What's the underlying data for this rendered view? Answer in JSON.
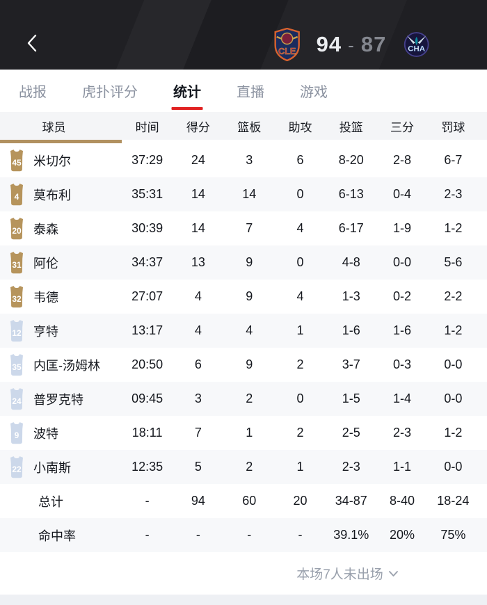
{
  "topbar": {
    "home_abbr": "CLE",
    "away_abbr": "CHA",
    "score_home": "94",
    "score_divider": "-",
    "score_away": "87"
  },
  "tabs": [
    {
      "label": "战报",
      "active": false
    },
    {
      "label": "虎扑评分",
      "active": false
    },
    {
      "label": "统计",
      "active": true
    },
    {
      "label": "直播",
      "active": false
    },
    {
      "label": "游戏",
      "active": false
    }
  ],
  "table": {
    "columns": [
      "球员",
      "时间",
      "得分",
      "篮板",
      "助攻",
      "投篮",
      "三分",
      "罚球"
    ],
    "stat_keys": [
      "time",
      "pts",
      "reb",
      "ast",
      "fg",
      "tp",
      "ft"
    ],
    "rows": [
      {
        "number": "45",
        "jersey": "starter",
        "name": "米切尔",
        "time": "37:29",
        "pts": "24",
        "reb": "3",
        "ast": "6",
        "fg": "8-20",
        "tp": "2-8",
        "ft": "6-7"
      },
      {
        "number": "4",
        "jersey": "starter",
        "name": "莫布利",
        "time": "35:31",
        "pts": "14",
        "reb": "14",
        "ast": "0",
        "fg": "6-13",
        "tp": "0-4",
        "ft": "2-3"
      },
      {
        "number": "20",
        "jersey": "starter",
        "name": "泰森",
        "time": "30:39",
        "pts": "14",
        "reb": "7",
        "ast": "4",
        "fg": "6-17",
        "tp": "1-9",
        "ft": "1-2"
      },
      {
        "number": "31",
        "jersey": "starter",
        "name": "阿伦",
        "time": "34:37",
        "pts": "13",
        "reb": "9",
        "ast": "0",
        "fg": "4-8",
        "tp": "0-0",
        "ft": "5-6"
      },
      {
        "number": "32",
        "jersey": "starter",
        "name": "韦德",
        "time": "27:07",
        "pts": "4",
        "reb": "9",
        "ast": "4",
        "fg": "1-3",
        "tp": "0-2",
        "ft": "2-2"
      },
      {
        "number": "12",
        "jersey": "bench",
        "name": "亨特",
        "time": "13:17",
        "pts": "4",
        "reb": "4",
        "ast": "1",
        "fg": "1-6",
        "tp": "1-6",
        "ft": "1-2"
      },
      {
        "number": "35",
        "jersey": "bench",
        "name": "内匡-汤姆林",
        "time": "20:50",
        "pts": "6",
        "reb": "9",
        "ast": "2",
        "fg": "3-7",
        "tp": "0-3",
        "ft": "0-0"
      },
      {
        "number": "24",
        "jersey": "bench",
        "name": "普罗克特",
        "time": "09:45",
        "pts": "3",
        "reb": "2",
        "ast": "0",
        "fg": "1-5",
        "tp": "1-4",
        "ft": "0-0"
      },
      {
        "number": "9",
        "jersey": "bench",
        "name": "波特",
        "time": "18:11",
        "pts": "7",
        "reb": "1",
        "ast": "2",
        "fg": "2-5",
        "tp": "2-3",
        "ft": "1-2"
      },
      {
        "number": "22",
        "jersey": "bench",
        "name": "小南斯",
        "time": "12:35",
        "pts": "5",
        "reb": "2",
        "ast": "1",
        "fg": "2-3",
        "tp": "1-1",
        "ft": "0-0"
      }
    ],
    "summary": [
      {
        "name": "总计",
        "time": "-",
        "pts": "94",
        "reb": "60",
        "ast": "20",
        "fg": "34-87",
        "tp": "8-40",
        "ft": "18-24"
      },
      {
        "name": "命中率",
        "time": "-",
        "pts": "-",
        "reb": "-",
        "ast": "-",
        "fg": "39.1%",
        "tp": "20%",
        "ft": "75%"
      }
    ]
  },
  "footer": {
    "note": "本场7人未出场"
  },
  "colors": {
    "accent_red": "#e12222",
    "gold": "#b19160",
    "starter_jersey": "#b6945c",
    "bench_jersey": "#ccd8ea",
    "jersey_number": "#ffffff",
    "tab_inactive": "#8b92a0",
    "row_alt_bg": "#f7f8fa",
    "head_bg": "#f4f5f7"
  }
}
